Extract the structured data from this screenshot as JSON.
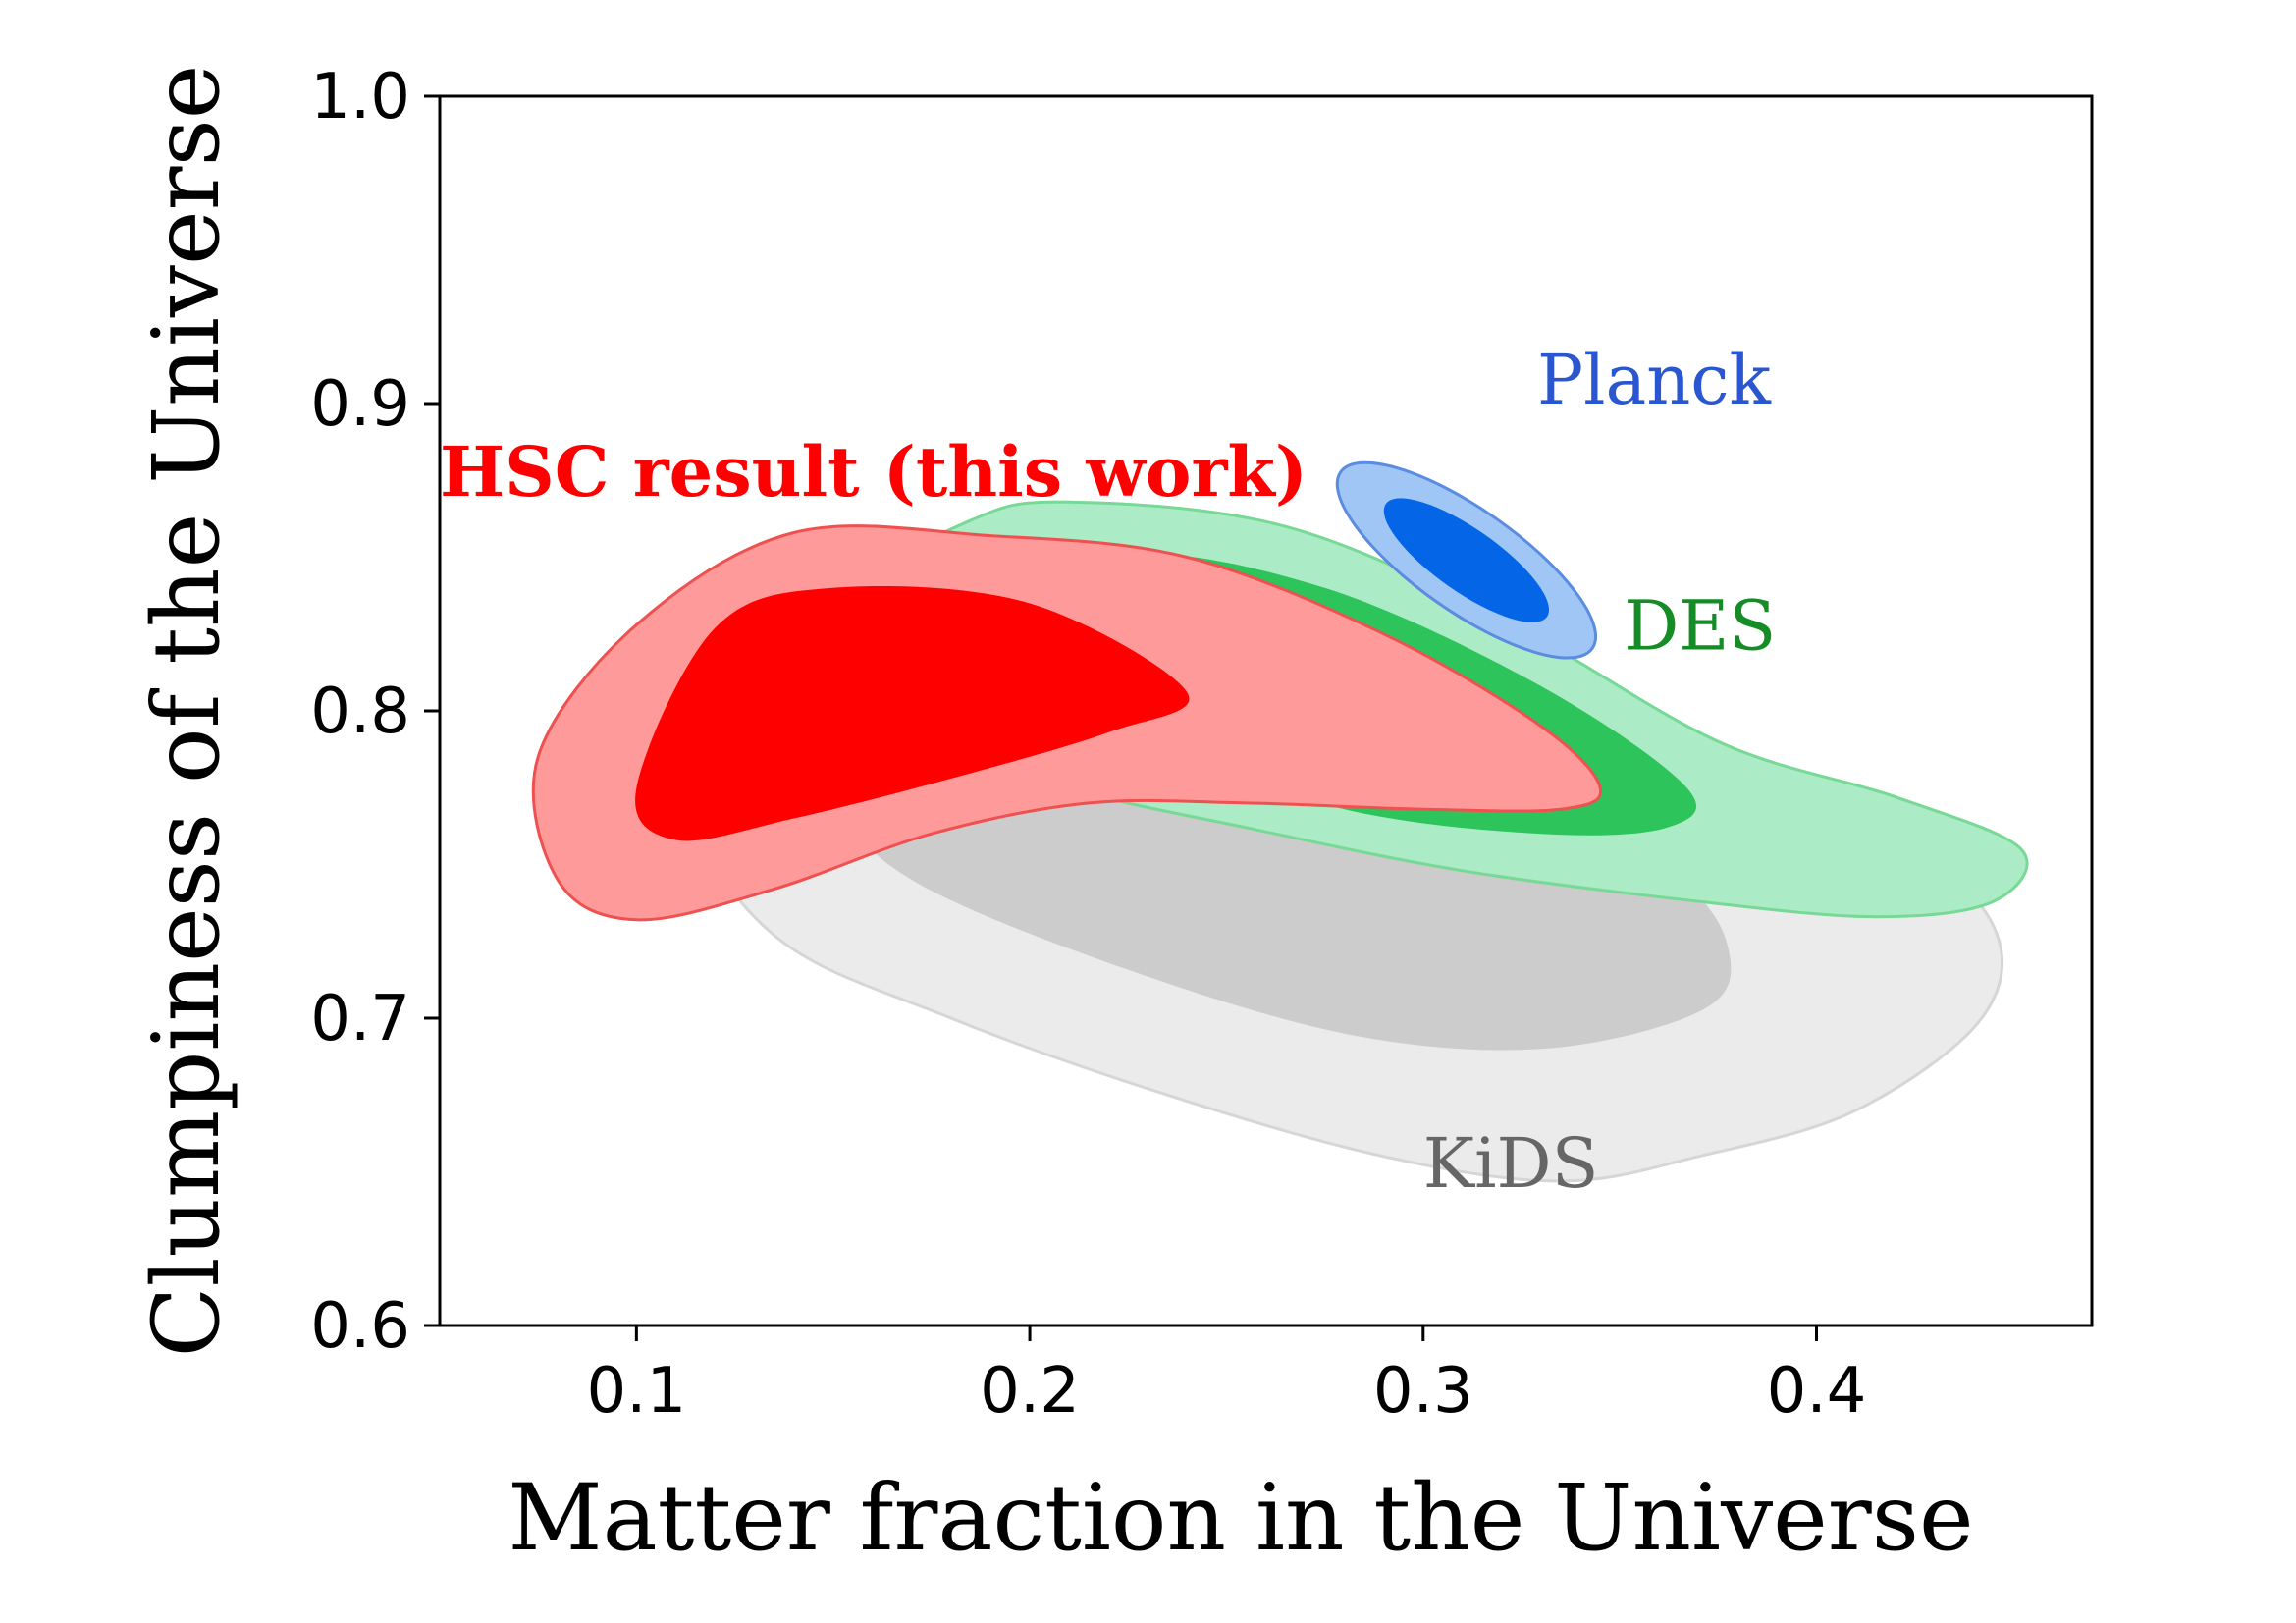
{
  "chart_data": {
    "type": "contour",
    "xlabel": "Matter fraction in the Universe",
    "ylabel": "Clumpiness of the Universe",
    "xlim": [
      0.05,
      0.47
    ],
    "ylim": [
      0.6,
      1.0
    ],
    "x_ticks": [
      "0.1",
      "0.2",
      "0.3",
      "0.4"
    ],
    "y_ticks": [
      "0.6",
      "0.7",
      "0.8",
      "0.9",
      "1.0"
    ],
    "grid": false,
    "series": [
      {
        "name": "KiDS",
        "label_at": [
          0.3,
          0.645
        ],
        "colors": {
          "outer": "#ebebeb",
          "inner": "#cccccc",
          "edge": "#d6d6d6",
          "label": "#666666"
        },
        "outer": [
          [
            0.145,
            0.845
          ],
          [
            0.215,
            0.852
          ],
          [
            0.3,
            0.83
          ],
          [
            0.37,
            0.79
          ],
          [
            0.42,
            0.76
          ],
          [
            0.445,
            0.73
          ],
          [
            0.442,
            0.7
          ],
          [
            0.41,
            0.67
          ],
          [
            0.37,
            0.655
          ],
          [
            0.335,
            0.647
          ],
          [
            0.29,
            0.655
          ],
          [
            0.235,
            0.675
          ],
          [
            0.18,
            0.7
          ],
          [
            0.135,
            0.727
          ],
          [
            0.11,
            0.775
          ],
          [
            0.115,
            0.815
          ]
        ],
        "inner": [
          [
            0.205,
            0.805
          ],
          [
            0.26,
            0.795
          ],
          [
            0.32,
            0.775
          ],
          [
            0.365,
            0.745
          ],
          [
            0.378,
            0.72
          ],
          [
            0.37,
            0.702
          ],
          [
            0.33,
            0.69
          ],
          [
            0.28,
            0.695
          ],
          [
            0.22,
            0.718
          ],
          [
            0.17,
            0.745
          ],
          [
            0.155,
            0.768
          ],
          [
            0.172,
            0.79
          ]
        ]
      },
      {
        "name": "DES",
        "label_at": [
          0.351,
          0.82
        ],
        "colors": {
          "outer": "#abebc6",
          "inner": "#2ec45c",
          "edge": "#77d995",
          "label": "#158c25"
        },
        "outer": [
          [
            0.155,
            0.838
          ],
          [
            0.185,
            0.862
          ],
          [
            0.21,
            0.868
          ],
          [
            0.265,
            0.86
          ],
          [
            0.32,
            0.83
          ],
          [
            0.375,
            0.79
          ],
          [
            0.42,
            0.772
          ],
          [
            0.452,
            0.755
          ],
          [
            0.445,
            0.738
          ],
          [
            0.415,
            0.733
          ],
          [
            0.37,
            0.738
          ],
          [
            0.31,
            0.748
          ],
          [
            0.255,
            0.762
          ],
          [
            0.21,
            0.775
          ],
          [
            0.18,
            0.792
          ],
          [
            0.16,
            0.812
          ]
        ],
        "inner": [
          [
            0.225,
            0.85
          ],
          [
            0.275,
            0.84
          ],
          [
            0.33,
            0.808
          ],
          [
            0.367,
            0.775
          ],
          [
            0.362,
            0.762
          ],
          [
            0.33,
            0.76
          ],
          [
            0.28,
            0.768
          ],
          [
            0.23,
            0.79
          ],
          [
            0.21,
            0.82
          ]
        ]
      },
      {
        "name": "HSC result (this work)",
        "label_at": [
          0.05,
          0.87
        ],
        "colors": {
          "outer": "#fe9a9a",
          "inner": "#ff0000",
          "edge": "#ef5050",
          "label": "#ff0000"
        },
        "outer": [
          [
            0.1,
            0.828
          ],
          [
            0.14,
            0.858
          ],
          [
            0.19,
            0.857
          ],
          [
            0.24,
            0.85
          ],
          [
            0.29,
            0.825
          ],
          [
            0.33,
            0.795
          ],
          [
            0.345,
            0.775
          ],
          [
            0.335,
            0.768
          ],
          [
            0.3,
            0.768
          ],
          [
            0.255,
            0.77
          ],
          [
            0.215,
            0.77
          ],
          [
            0.175,
            0.76
          ],
          [
            0.135,
            0.742
          ],
          [
            0.1,
            0.732
          ],
          [
            0.08,
            0.745
          ],
          [
            0.075,
            0.785
          ]
        ],
        "inner": [
          [
            0.12,
            0.827
          ],
          [
            0.15,
            0.84
          ],
          [
            0.2,
            0.835
          ],
          [
            0.24,
            0.806
          ],
          [
            0.22,
            0.793
          ],
          [
            0.18,
            0.778
          ],
          [
            0.14,
            0.765
          ],
          [
            0.11,
            0.758
          ],
          [
            0.1,
            0.775
          ]
        ]
      },
      {
        "name": "Planck",
        "label_at": [
          0.329,
          0.9
        ],
        "colors": {
          "outer": "#9fc6f4",
          "inner": "#0466e7",
          "edge": "#5b8ce0",
          "label": "#2a57d0"
        },
        "center": [
          0.311,
          0.849
        ],
        "outer_radii": [
          0.013,
          0.05
        ],
        "inner_radii": [
          0.008,
          0.032
        ],
        "tilt_deg": -55
      }
    ]
  }
}
